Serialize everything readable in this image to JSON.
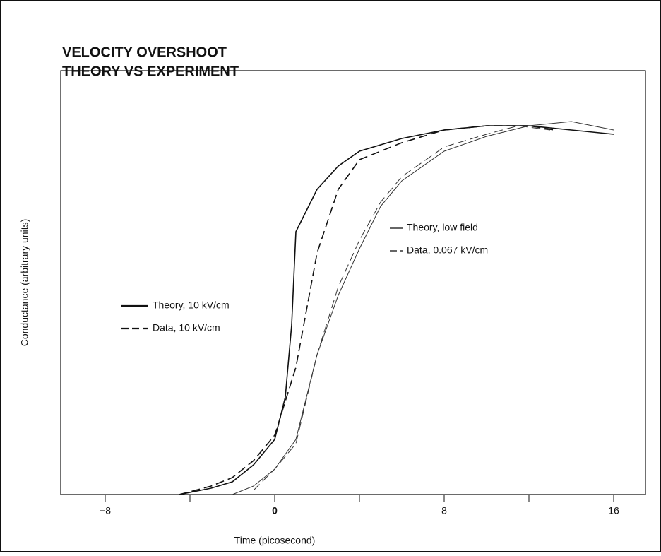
{
  "chart_data": {
    "type": "line",
    "title": [
      "VELOCITY OVERSHOOT",
      "THEORY VS EXPERIMENT"
    ],
    "x_label": "Time   (picosecond)",
    "y_label": "Conductance (arbitrary units)",
    "xlim": [
      -10.1,
      17.5
    ],
    "ylim": [
      0,
      1
    ],
    "xticks": [
      {
        "value": -8,
        "label": "−8"
      },
      0,
      8,
      16
    ],
    "xminorticks": [
      -4,
      4,
      12
    ],
    "series": [
      {
        "name": "Theory, 10 kV/cm",
        "color": "#111111",
        "dash": "solid",
        "width": 1.6,
        "x": [
          -4.5,
          -3,
          -2,
          -1,
          0,
          0.5,
          0.8,
          1,
          2,
          3,
          4,
          6,
          8,
          10,
          12,
          14,
          16
        ],
        "values": [
          0,
          0.015,
          0.03,
          0.07,
          0.13,
          0.23,
          0.4,
          0.62,
          0.72,
          0.775,
          0.81,
          0.84,
          0.86,
          0.87,
          0.87,
          0.86,
          0.85
        ]
      },
      {
        "name": "Data, 10 kV/cm",
        "color": "#111111",
        "dash": "dashed",
        "width": 1.6,
        "x": [
          -4.5,
          -3,
          -2,
          -1,
          0,
          1,
          2,
          3,
          4,
          6,
          8,
          10,
          12,
          13.2
        ],
        "values": [
          0,
          0.02,
          0.04,
          0.08,
          0.14,
          0.3,
          0.57,
          0.72,
          0.79,
          0.83,
          0.86,
          0.87,
          0.87,
          0.86
        ]
      },
      {
        "name": "Theory,  low  field",
        "color": "#333333",
        "dash": "solid",
        "width": 1,
        "x": [
          -2,
          -1,
          0,
          1,
          2,
          3,
          4,
          5,
          6,
          8,
          10,
          12,
          14,
          16
        ],
        "values": [
          0,
          0.02,
          0.06,
          0.13,
          0.33,
          0.47,
          0.58,
          0.68,
          0.74,
          0.81,
          0.845,
          0.87,
          0.88,
          0.86
        ]
      },
      {
        "name": "Data,  0.067  kV/cm",
        "color": "#333333",
        "dash": "dashed",
        "width": 1,
        "x": [
          -1,
          0,
          1,
          2,
          3,
          4,
          5,
          6,
          8,
          10,
          11.5,
          13
        ],
        "values": [
          0.01,
          0.06,
          0.12,
          0.33,
          0.49,
          0.6,
          0.69,
          0.75,
          0.82,
          0.85,
          0.87,
          0.86
        ]
      }
    ]
  }
}
